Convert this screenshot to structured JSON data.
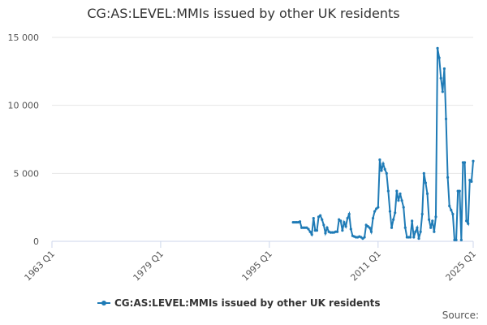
{
  "chart_data": {
    "type": "line",
    "title": "CG:AS:LEVEL:MMIs issued by other UK residents",
    "source": "Source:",
    "xlim": [
      "1963 Q1",
      "2025 Q1"
    ],
    "xticks": [
      "1963 Q1",
      "1979 Q1",
      "1995 Q1",
      "2011 Q1",
      "2025 Q1"
    ],
    "ylim": [
      0,
      15000
    ],
    "yticks": [
      {
        "value": 0,
        "label": "0"
      },
      {
        "value": 5000,
        "label": "5 000"
      },
      {
        "value": 10000,
        "label": "10 000"
      },
      {
        "value": 15000,
        "label": "15 000"
      }
    ],
    "grid": true,
    "legend": "bottom",
    "x": [
      "1998 Q3",
      "1998 Q4",
      "1999 Q1",
      "1999 Q2",
      "1999 Q3",
      "1999 Q4",
      "2000 Q1",
      "2000 Q2",
      "2000 Q3",
      "2000 Q4",
      "2001 Q1",
      "2001 Q2",
      "2001 Q3",
      "2001 Q4",
      "2002 Q1",
      "2002 Q2",
      "2002 Q3",
      "2002 Q4",
      "2003 Q1",
      "2003 Q2",
      "2003 Q3",
      "2003 Q4",
      "2004 Q1",
      "2004 Q2",
      "2004 Q3",
      "2004 Q4",
      "2005 Q1",
      "2005 Q2",
      "2005 Q3",
      "2005 Q4",
      "2006 Q1",
      "2006 Q2",
      "2006 Q3",
      "2006 Q4",
      "2007 Q1",
      "2007 Q2",
      "2007 Q3",
      "2007 Q4",
      "2008 Q1",
      "2008 Q2",
      "2008 Q3",
      "2008 Q4",
      "2009 Q1",
      "2009 Q2",
      "2009 Q3",
      "2009 Q4",
      "2010 Q1",
      "2010 Q2",
      "2010 Q3",
      "2010 Q4",
      "2011 Q1",
      "2011 Q2",
      "2011 Q3",
      "2011 Q4",
      "2012 Q1",
      "2012 Q2",
      "2012 Q3",
      "2012 Q4",
      "2013 Q1",
      "2013 Q2",
      "2013 Q3",
      "2013 Q4",
      "2014 Q1",
      "2014 Q2",
      "2014 Q3",
      "2014 Q4",
      "2015 Q1",
      "2015 Q2",
      "2015 Q3",
      "2015 Q4",
      "2016 Q1",
      "2016 Q2",
      "2016 Q3",
      "2016 Q4",
      "2017 Q1",
      "2017 Q2",
      "2017 Q3",
      "2017 Q4",
      "2018 Q1",
      "2018 Q2",
      "2018 Q3",
      "2018 Q4",
      "2019 Q1",
      "2019 Q2",
      "2019 Q3",
      "2019 Q4",
      "2020 Q1",
      "2020 Q2",
      "2020 Q3",
      "2020 Q4",
      "2021 Q1",
      "2021 Q2",
      "2021 Q3",
      "2021 Q4",
      "2022 Q1",
      "2022 Q2",
      "2022 Q3",
      "2022 Q4",
      "2023 Q1",
      "2023 Q2",
      "2023 Q3",
      "2023 Q4",
      "2024 Q1",
      "2024 Q2",
      "2024 Q3",
      "2024 Q4",
      "2025 Q1"
    ],
    "series": [
      {
        "name": "CG:AS:LEVEL:MMIs issued by other UK residents",
        "color": "#1f7bb6",
        "values": [
          1400,
          1400,
          1400,
          1400,
          1450,
          1000,
          1000,
          1000,
          1000,
          900,
          700,
          500,
          1700,
          800,
          800,
          1800,
          1900,
          1600,
          1200,
          600,
          1000,
          700,
          650,
          650,
          650,
          700,
          700,
          1600,
          1500,
          800,
          1400,
          1100,
          1700,
          2000,
          900,
          400,
          350,
          300,
          300,
          350,
          300,
          200,
          300,
          1200,
          1100,
          1000,
          700,
          1700,
          2200,
          2400,
          2500,
          6000,
          5200,
          5700,
          5300,
          5000,
          3700,
          2200,
          1000,
          1600,
          2100,
          3700,
          3000,
          3500,
          3000,
          2500,
          1000,
          300,
          300,
          300,
          1500,
          300,
          700,
          1000,
          200,
          700,
          2000,
          5000,
          4300,
          3500,
          1600,
          1000,
          1500,
          700,
          1800,
          14200,
          13500,
          12000,
          11000,
          12700,
          9000,
          4700,
          2600,
          2300,
          2000,
          100,
          100,
          3700,
          3700,
          100,
          5800,
          5800,
          1500,
          1300,
          4500,
          4400,
          5900
        ]
      }
    ]
  }
}
